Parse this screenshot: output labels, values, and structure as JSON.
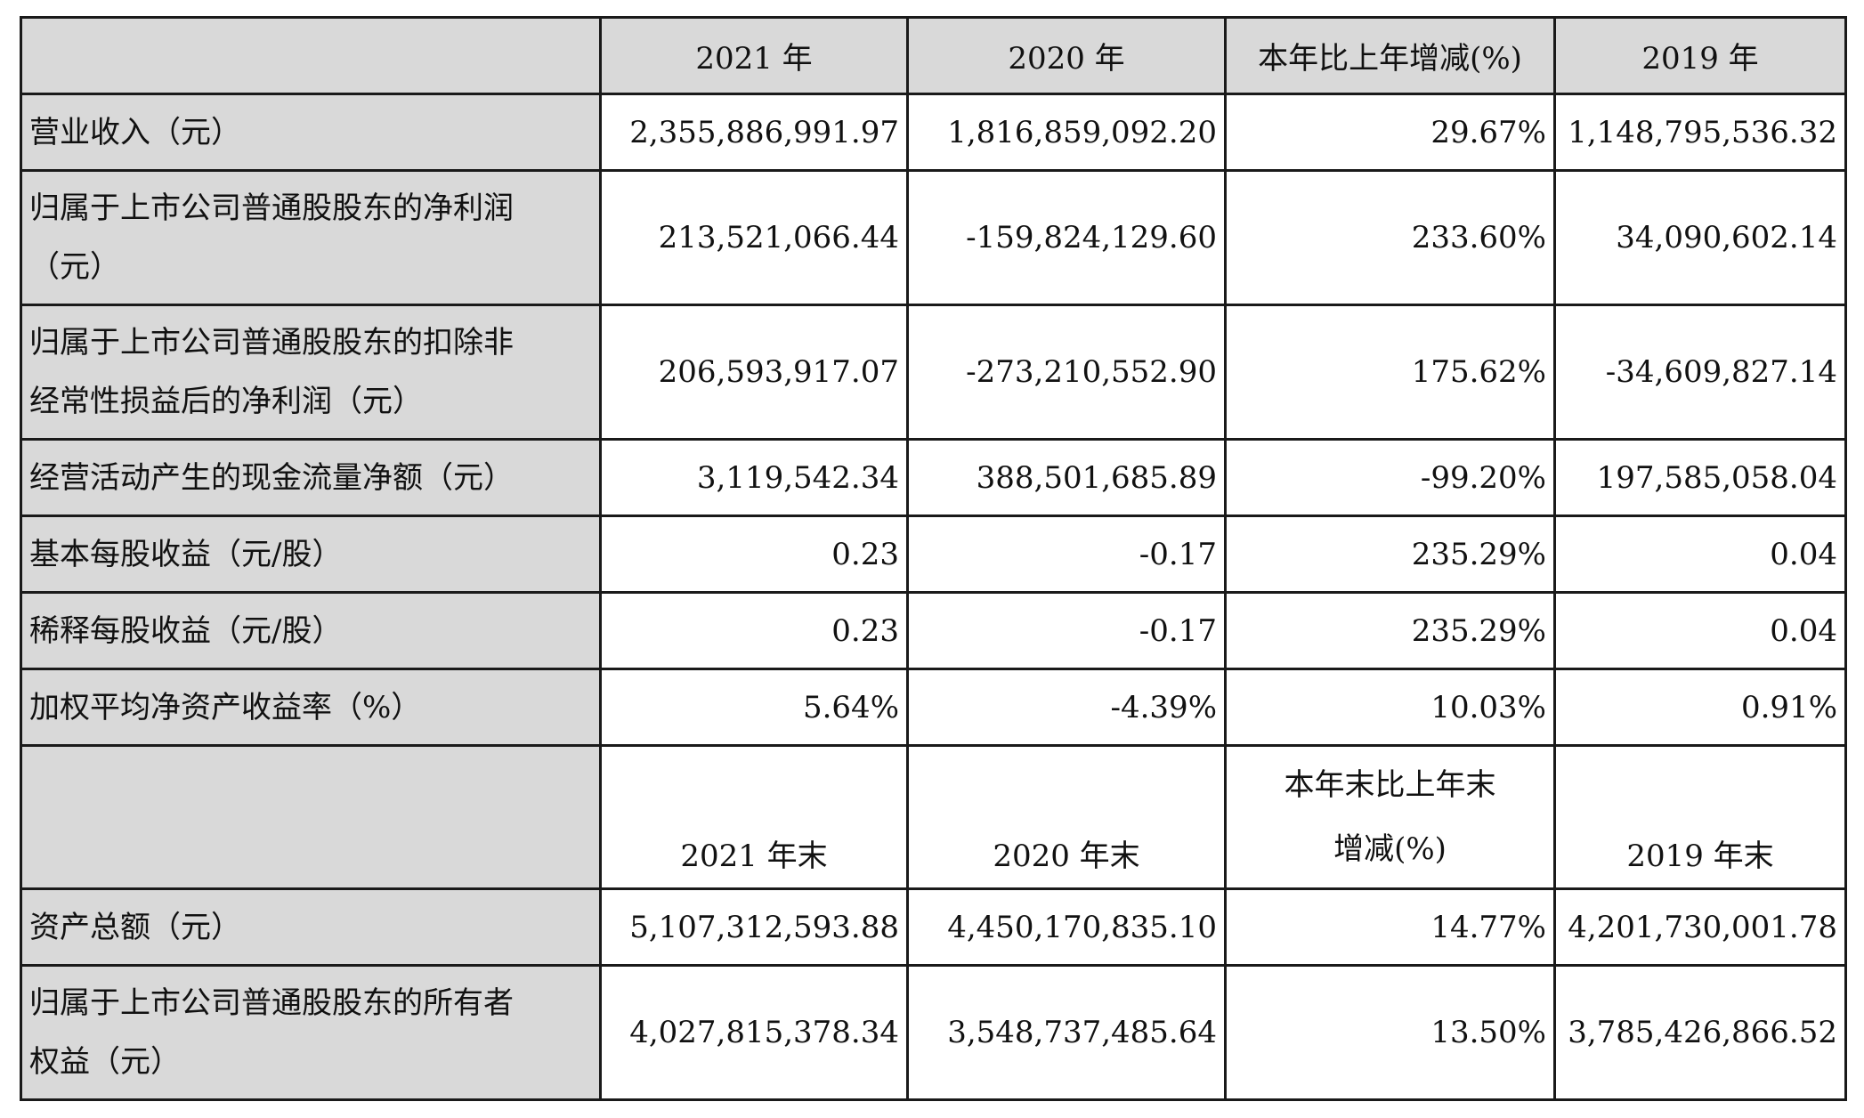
{
  "header1": {
    "c1": "2021 年",
    "c2": "2020 年",
    "c3": "本年比上年增减(%)",
    "c4": "2019 年"
  },
  "header2": {
    "c1": "2021 年末",
    "c2": "2020 年末",
    "c3_line1": "本年末比上年末",
    "c3_line2": "增减(%)",
    "c4": "2019 年末"
  },
  "rows": [
    {
      "label_line1": "营业收入（元）",
      "v2021": "2,355,886,991.97",
      "v2020": "1,816,859,092.20",
      "change": "29.67%",
      "v2019": "1,148,795,536.32"
    },
    {
      "label_line1": "归属于上市公司普通股股东的净利润",
      "label_line2": "（元）",
      "v2021": "213,521,066.44",
      "v2020": "-159,824,129.60",
      "change": "233.60%",
      "v2019": "34,090,602.14"
    },
    {
      "label_line1": "归属于上市公司普通股股东的扣除非",
      "label_line2": "经常性损益后的净利润（元）",
      "v2021": "206,593,917.07",
      "v2020": "-273,210,552.90",
      "change": "175.62%",
      "v2019": "-34,609,827.14"
    },
    {
      "label_line1": "经营活动产生的现金流量净额（元）",
      "v2021": "3,119,542.34",
      "v2020": "388,501,685.89",
      "change": "-99.20%",
      "v2019": "197,585,058.04"
    },
    {
      "label_line1": "基本每股收益（元/股）",
      "v2021": "0.23",
      "v2020": "-0.17",
      "change": "235.29%",
      "v2019": "0.04"
    },
    {
      "label_line1": "稀释每股收益（元/股）",
      "v2021": "0.23",
      "v2020": "-0.17",
      "change": "235.29%",
      "v2019": "0.04"
    },
    {
      "label_line1": "加权平均净资产收益率（%）",
      "v2021": "5.64%",
      "v2020": "-4.39%",
      "change": "10.03%",
      "v2019": "0.91%"
    },
    {
      "label_line1": "资产总额（元）",
      "v2021": "5,107,312,593.88",
      "v2020": "4,450,170,835.10",
      "change": "14.77%",
      "v2019": "4,201,730,001.78"
    },
    {
      "label_line1": "归属于上市公司普通股股东的所有者",
      "label_line2": "权益（元）",
      "v2021": "4,027,815,378.34",
      "v2020": "3,548,737,485.64",
      "change": "13.50%",
      "v2019": "3,785,426,866.52"
    }
  ]
}
